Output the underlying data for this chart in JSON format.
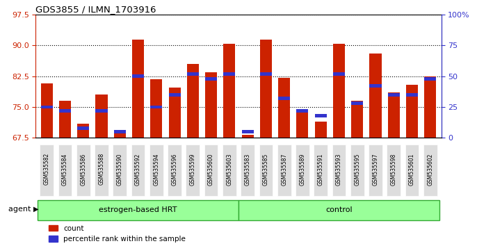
{
  "title": "GDS3855 / ILMN_1703916",
  "samples": [
    "GSM535582",
    "GSM535584",
    "GSM535586",
    "GSM535588",
    "GSM535590",
    "GSM535592",
    "GSM535594",
    "GSM535596",
    "GSM535599",
    "GSM535600",
    "GSM535603",
    "GSM535583",
    "GSM535585",
    "GSM535587",
    "GSM535589",
    "GSM535591",
    "GSM535593",
    "GSM535595",
    "GSM535597",
    "GSM535598",
    "GSM535601",
    "GSM535602"
  ],
  "count_values": [
    80.8,
    76.5,
    71.0,
    78.0,
    68.8,
    91.5,
    81.8,
    79.7,
    85.5,
    83.5,
    90.5,
    68.3,
    91.5,
    82.2,
    74.5,
    71.5,
    90.5,
    76.5,
    88.0,
    78.5,
    80.5,
    82.5
  ],
  "percentile_values": [
    25,
    22,
    8,
    22,
    5,
    50,
    25,
    35,
    52,
    48,
    52,
    5,
    52,
    32,
    22,
    18,
    52,
    28,
    42,
    35,
    35,
    48
  ],
  "group_labels": [
    "estrogen-based HRT",
    "control"
  ],
  "group_split": 11,
  "ylim_left": [
    67.5,
    97.5
  ],
  "ylim_right": [
    0,
    100
  ],
  "yticks_left": [
    67.5,
    75.0,
    82.5,
    90.0,
    97.5
  ],
  "yticks_right": [
    0,
    25,
    50,
    75,
    100
  ],
  "bar_color_red": "#CC2200",
  "bar_color_blue": "#3333CC",
  "group_color": "#99FF99",
  "group_edge_color": "#33AA33",
  "sample_bg_color": "#DDDDDD",
  "left_axis_color": "#CC2200",
  "right_axis_color": "#3333CC",
  "bar_width": 0.65,
  "legend_labels": [
    "count",
    "percentile rank within the sample"
  ]
}
